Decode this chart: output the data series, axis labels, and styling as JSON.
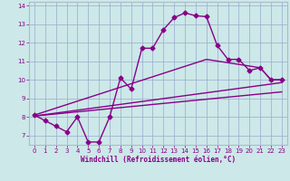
{
  "title": "",
  "xlabel": "Windchill (Refroidissement éolien,°C)",
  "background_color": "#cce8e8",
  "line_color": "#880088",
  "grid_color": "#99aacc",
  "xlim": [
    -0.5,
    23.5
  ],
  "ylim": [
    6.5,
    14.2
  ],
  "yticks": [
    7,
    8,
    9,
    10,
    11,
    12,
    13,
    14
  ],
  "xticks": [
    0,
    1,
    2,
    3,
    4,
    5,
    6,
    7,
    8,
    9,
    10,
    11,
    12,
    13,
    14,
    15,
    16,
    17,
    18,
    19,
    20,
    21,
    22,
    23
  ],
  "series1_x": [
    0,
    1,
    2,
    3,
    4,
    5,
    6,
    7,
    8,
    9,
    10,
    11,
    12,
    13,
    14,
    15,
    16,
    17,
    18,
    19,
    20,
    21,
    22,
    23
  ],
  "series1_y": [
    8.1,
    7.8,
    7.5,
    7.2,
    8.0,
    6.65,
    6.65,
    8.0,
    10.1,
    9.5,
    11.7,
    11.7,
    12.7,
    13.35,
    13.6,
    13.45,
    13.4,
    11.85,
    11.1,
    11.1,
    10.5,
    10.65,
    10.0,
    10.0
  ],
  "series2_x": [
    0,
    16,
    21,
    22,
    23
  ],
  "series2_y": [
    8.1,
    11.1,
    10.65,
    10.0,
    10.0
  ],
  "series3_x": [
    0,
    23
  ],
  "series3_y": [
    8.05,
    9.85
  ],
  "series4_x": [
    0,
    23
  ],
  "series4_y": [
    8.05,
    9.35
  ],
  "marker": "D",
  "marker_size": 2.5,
  "line_width": 1.0
}
